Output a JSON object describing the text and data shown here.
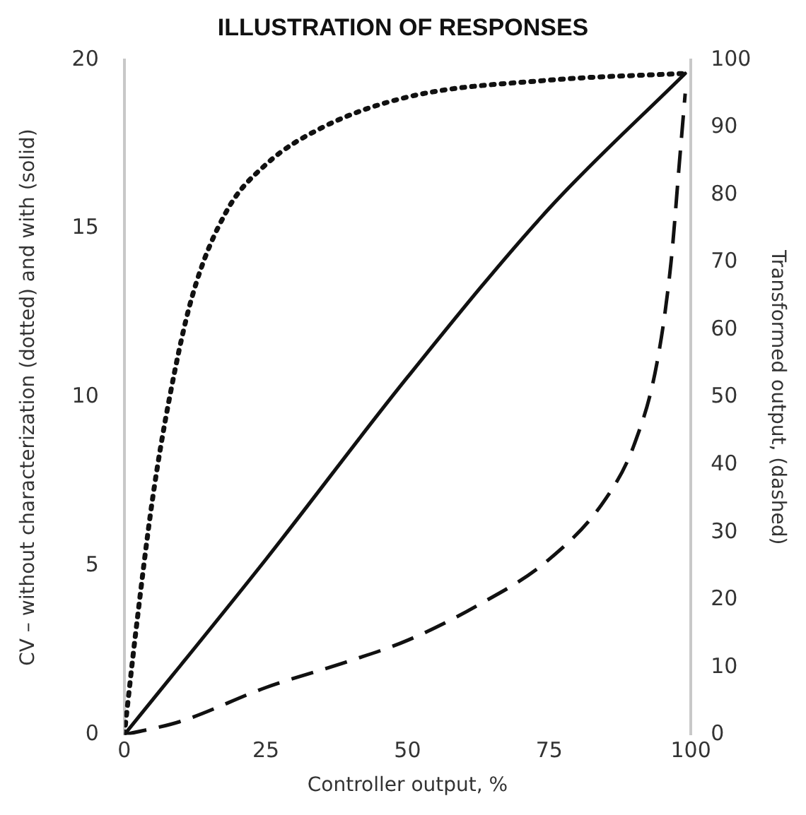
{
  "chart_data": {
    "type": "line",
    "title": "ILLUSTRATION OF RESPONSES",
    "xlabel": "Controller output, %",
    "ylabel": "CV – without characterization (dotted) and with (solid)",
    "y2label": "Transformed output, (dashed)",
    "xlim": [
      0,
      100
    ],
    "xticks": [
      0,
      25,
      50,
      75,
      100
    ],
    "ylim": [
      0,
      20
    ],
    "yticks": [
      0,
      5,
      10,
      15,
      20
    ],
    "y2lim": [
      0,
      100
    ],
    "y2ticks": [
      0,
      10,
      20,
      30,
      40,
      50,
      60,
      70,
      80,
      90,
      100
    ],
    "grid": false,
    "legend": false,
    "marker": "none",
    "series": [
      {
        "color": "#111111",
        "line_style": "dotted",
        "x": [
          0,
          2,
          5,
          8,
          12,
          18,
          25,
          35,
          50,
          75,
          99
        ],
        "values": [
          0,
          3,
          7,
          10,
          13,
          15.5,
          16.9,
          18,
          18.9,
          19.4,
          19.6
        ]
      },
      {
        "color": "#111111",
        "line_style": "solid",
        "x": [
          0,
          25,
          50,
          75,
          99
        ],
        "values": [
          0,
          5.2,
          10.6,
          15.6,
          19.6
        ]
      },
      {
        "color": "#111111",
        "line_style": "dashed",
        "axis": "y2",
        "x": [
          0,
          10,
          25,
          40,
          50,
          62,
          75,
          85,
          90,
          94,
          96.5,
          98,
          99
        ],
        "values": [
          0,
          2,
          7,
          11,
          14,
          19,
          26,
          35,
          43,
          55,
          70,
          85,
          95
        ]
      }
    ]
  }
}
